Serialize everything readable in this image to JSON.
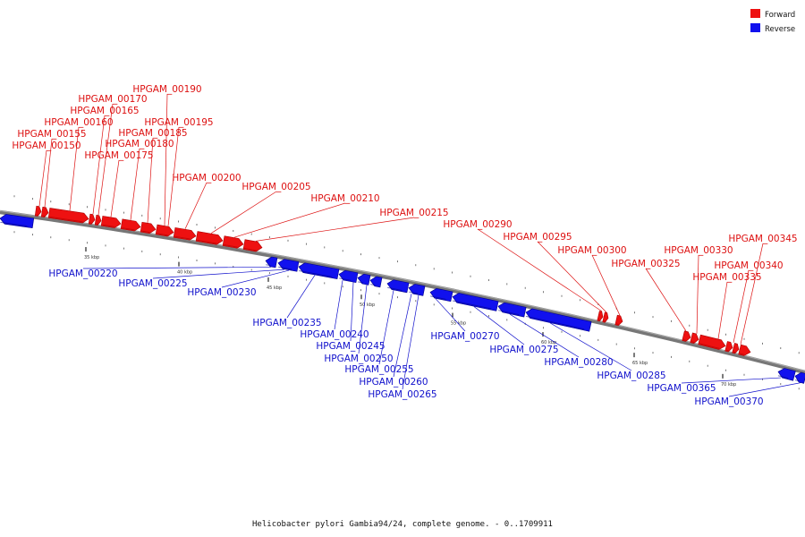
{
  "legend": [
    {
      "label": "Forward",
      "color": "#ee1111"
    },
    {
      "label": "Reverse",
      "color": "#1111ee"
    }
  ],
  "caption": "Helicobacter pylori Gambia94/24, complete genome. - 0..1709911",
  "scale_ticks": [
    {
      "label": "35 kbp"
    },
    {
      "label": "40 kbp"
    },
    {
      "label": "45 kbp"
    },
    {
      "label": "50 kbp"
    },
    {
      "label": "55 kbp"
    },
    {
      "label": "60 kbp"
    },
    {
      "label": "65 kbp"
    },
    {
      "label": "70 kbp"
    }
  ],
  "genes_forward": [
    "HPGAM_00150",
    "HPGAM_00155",
    "HPGAM_00160",
    "HPGAM_00165",
    "HPGAM_00170",
    "HPGAM_00175",
    "HPGAM_00180",
    "HPGAM_00185",
    "HPGAM_00190",
    "HPGAM_00195",
    "HPGAM_00200",
    "HPGAM_00205",
    "HPGAM_00210",
    "HPGAM_00215",
    "HPGAM_00290",
    "HPGAM_00295",
    "HPGAM_00300",
    "HPGAM_00325",
    "HPGAM_00330",
    "HPGAM_00335",
    "HPGAM_00340",
    "HPGAM_00345"
  ],
  "genes_reverse": [
    "HPGAM_00220",
    "HPGAM_00225",
    "HPGAM_00230",
    "HPGAM_00235",
    "HPGAM_00240",
    "HPGAM_00245",
    "HPGAM_00250",
    "HPGAM_00255",
    "HPGAM_00260",
    "HPGAM_00265",
    "HPGAM_00270",
    "HPGAM_00275",
    "HPGAM_00280",
    "HPGAM_00285",
    "HPGAM_00365",
    "HPGAM_00370"
  ]
}
